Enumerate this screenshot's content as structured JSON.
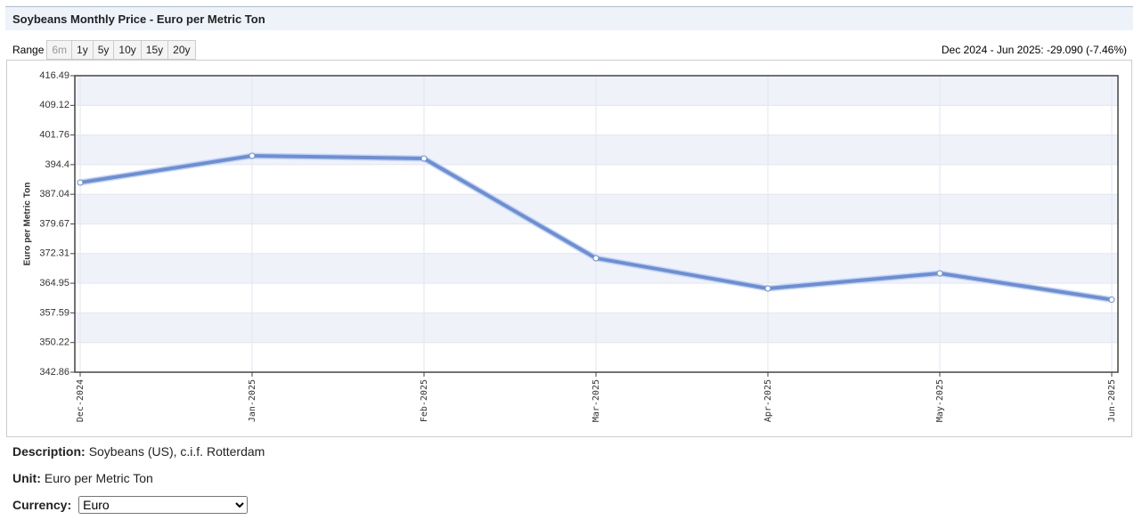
{
  "chart_data": {
    "type": "line",
    "title": "Soybeans Monthly Price - Euro per Metric Ton",
    "y_label": "Euro per Metric Ton",
    "categories": [
      "Dec-2024",
      "Jan-2025",
      "Feb-2025",
      "Mar-2025",
      "Apr-2025",
      "May-2025",
      "Jun-2025"
    ],
    "values": [
      389.96,
      396.59,
      395.93,
      371.17,
      363.65,
      367.41,
      360.87
    ],
    "color": "#6a8fd8",
    "ylim": [
      342.86,
      416.49
    ],
    "yticks": [
      342.86,
      350.22,
      357.59,
      364.95,
      372.31,
      379.67,
      387.04,
      394.4,
      401.76,
      409.12,
      416.49
    ],
    "grid": true
  },
  "range": {
    "label": "Range",
    "options": [
      "6m",
      "1y",
      "5y",
      "10y",
      "15y",
      "20y"
    ]
  },
  "summary": "Dec 2024 - Jun 2025: -29.090 (-7.46%)",
  "details": [
    {
      "label": "Description:",
      "value": "Soybeans (US), c.i.f. Rotterdam"
    },
    {
      "label": "Unit:",
      "value": "Euro per Metric Ton"
    }
  ],
  "currency": {
    "label": "Currency:",
    "selected": "Euro"
  }
}
